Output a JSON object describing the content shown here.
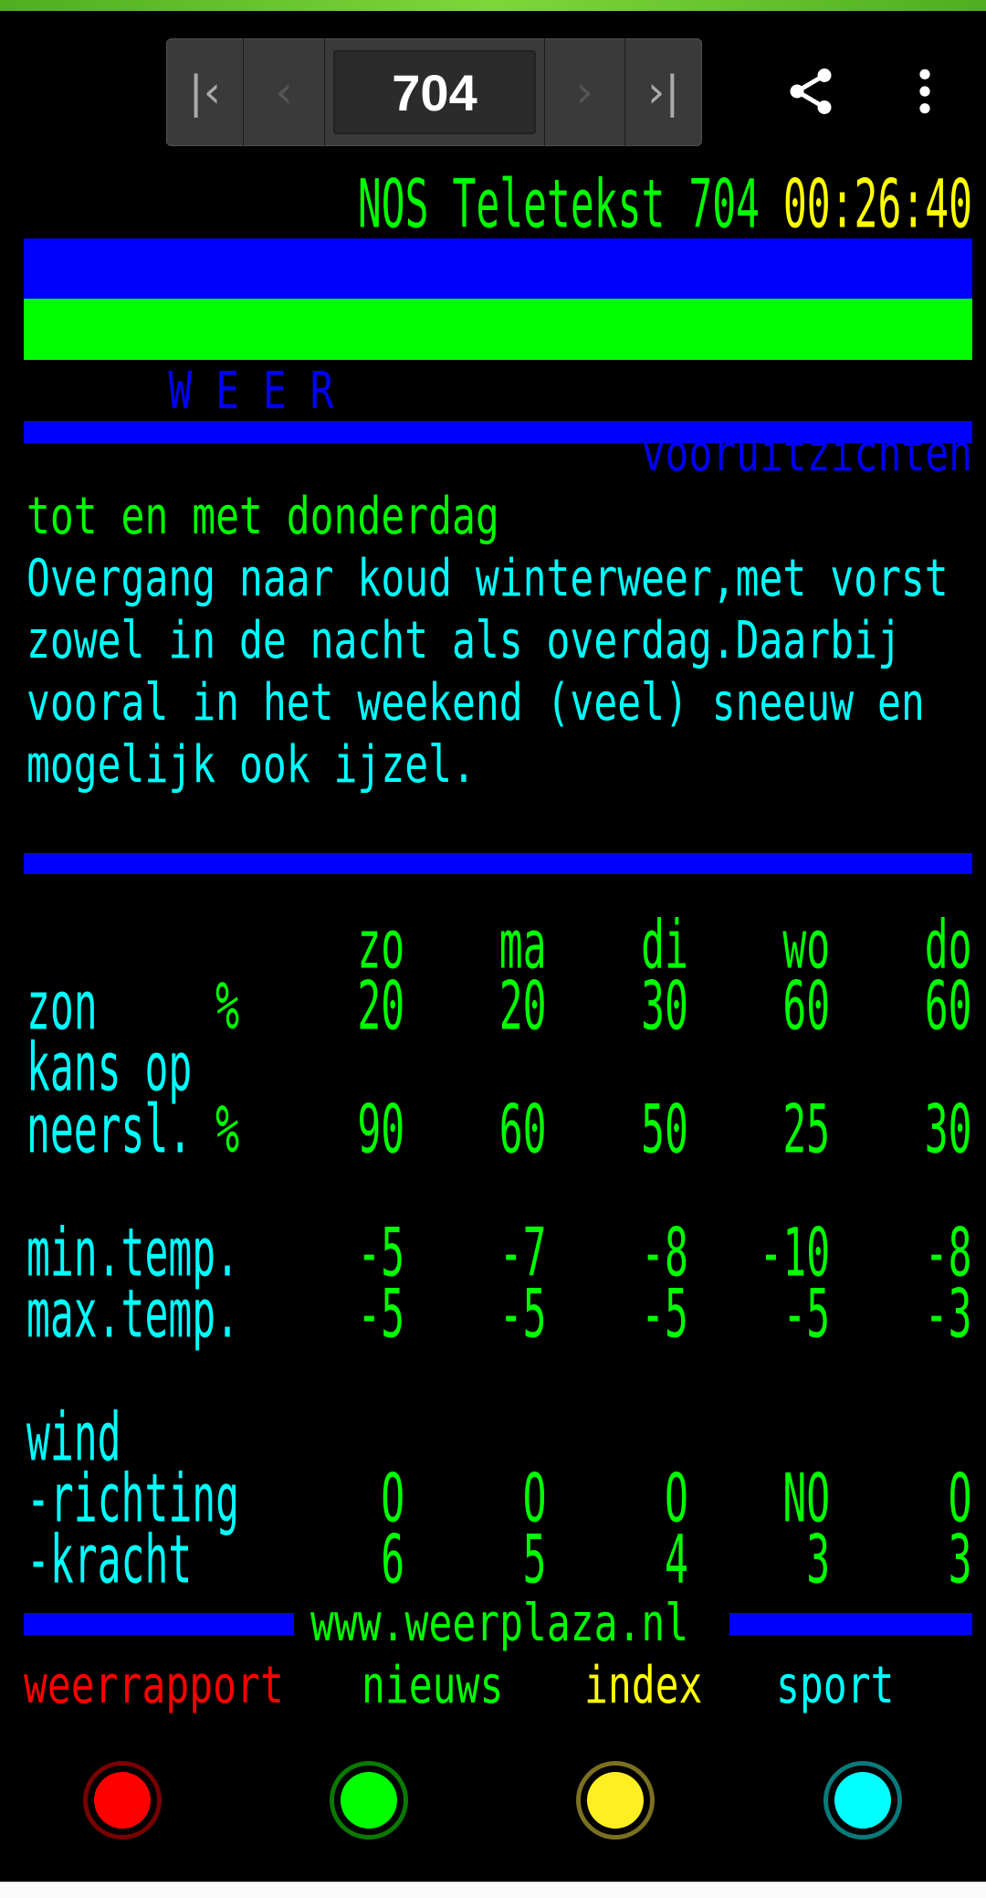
{
  "nav": {
    "page_number": "704",
    "first_icon": "first-page-icon",
    "prev_icon": "prev-page-icon",
    "next_icon": "next-page-icon",
    "last_icon": "last-page-icon"
  },
  "toolbar": {
    "share_icon": "share-icon",
    "menu_icon": "more-vert-icon"
  },
  "header": {
    "title": "NOS Teletekst 704 ",
    "time": "00:26:40"
  },
  "banner": {
    "section": "W E E R",
    "subtitle": "vooruitzichten"
  },
  "forecast": {
    "period": "tot en met donderdag",
    "lines": [
      "Overgang naar koud winterweer,met vorst",
      "zowel in de nacht als overdag.Daarbij",
      "vooral in het weekend (veel) sneeuw en",
      "mogelijk ook ijzel."
    ]
  },
  "table": {
    "days": [
      "zo",
      "ma",
      "di",
      "wo",
      "do"
    ],
    "rows": [
      {
        "label": "zon",
        "unit": "%",
        "values": [
          "20",
          "20",
          "30",
          "60",
          "60"
        ]
      },
      {
        "label": "kans op",
        "unit": "",
        "values": []
      },
      {
        "label": "neersl.",
        "unit": "%",
        "values": [
          "90",
          "60",
          "50",
          "25",
          "30"
        ]
      },
      {
        "label": "min.temp.",
        "unit": "",
        "values": [
          "-5",
          "-7",
          "-8",
          "-10",
          "-8"
        ]
      },
      {
        "label": "max.temp.",
        "unit": "",
        "values": [
          "-5",
          "-5",
          "-5",
          "-5",
          "-3"
        ]
      },
      {
        "label": "wind",
        "unit": "",
        "values": []
      },
      {
        "label": "-richting",
        "unit": "",
        "values": [
          "O",
          "O",
          "O",
          "NO",
          "O"
        ]
      },
      {
        "label": "-kracht",
        "unit": "",
        "values": [
          "6",
          "5",
          "4",
          "3",
          "3"
        ]
      }
    ]
  },
  "footer": {
    "url": "www.weerplaza.nl"
  },
  "fastlinks": [
    {
      "label": "weerrapport",
      "color": "#ff0000"
    },
    {
      "label": "nieuws",
      "color": "#00ff00"
    },
    {
      "label": "index",
      "color": "#ffff00"
    },
    {
      "label": "sport",
      "color": "#00ffff"
    }
  ],
  "colors": {
    "blue": "#0000ff",
    "green": "#00ff00",
    "cyan": "#00ffff",
    "yellow": "#ffff00",
    "red": "#ff0000"
  }
}
